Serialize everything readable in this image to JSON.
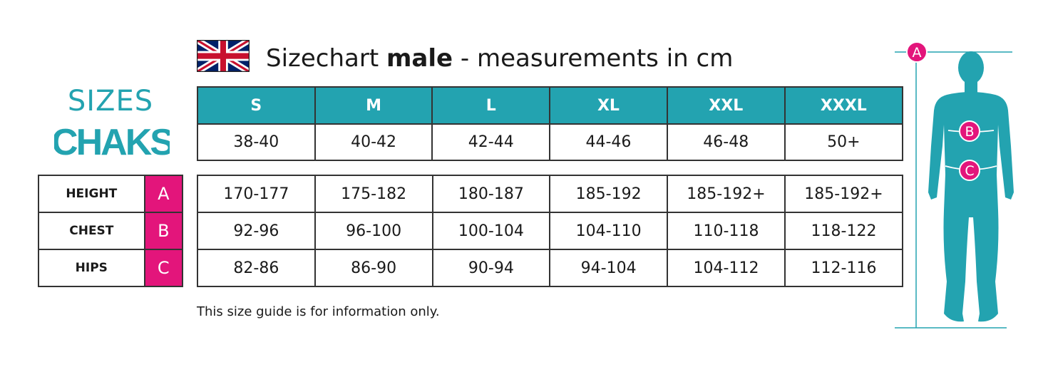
{
  "header": {
    "title_prefix": "Sizechart ",
    "title_bold": "male",
    "title_suffix": " - measurements in cm",
    "flag_icon": "uk-flag-icon"
  },
  "brand": {
    "sizes_label": "SIZES",
    "logo_text": "CHAKS"
  },
  "colors": {
    "teal": "#23a3b0",
    "magenta": "#e3157b"
  },
  "sizes": {
    "headers": [
      "S",
      "M",
      "L",
      "XL",
      "XXL",
      "XXXL"
    ],
    "values": [
      "38-40",
      "40-42",
      "42-44",
      "44-46",
      "46-48",
      "50+"
    ]
  },
  "measurements": [
    {
      "label": "HEIGHT",
      "key": "A",
      "values": [
        "170-177",
        "175-182",
        "180-187",
        "185-192",
        "185-192+",
        "185-192+"
      ]
    },
    {
      "label": "CHEST",
      "key": "B",
      "values": [
        "92-96",
        "96-100",
        "100-104",
        "104-110",
        "110-118",
        "118-122"
      ]
    },
    {
      "label": "HIPS",
      "key": "C",
      "values": [
        "82-86",
        "86-90",
        "90-94",
        "94-104",
        "104-112",
        "112-116"
      ]
    }
  ],
  "figure": {
    "markers": [
      "A",
      "B",
      "C"
    ]
  },
  "disclaimer": "This size guide is for information only."
}
